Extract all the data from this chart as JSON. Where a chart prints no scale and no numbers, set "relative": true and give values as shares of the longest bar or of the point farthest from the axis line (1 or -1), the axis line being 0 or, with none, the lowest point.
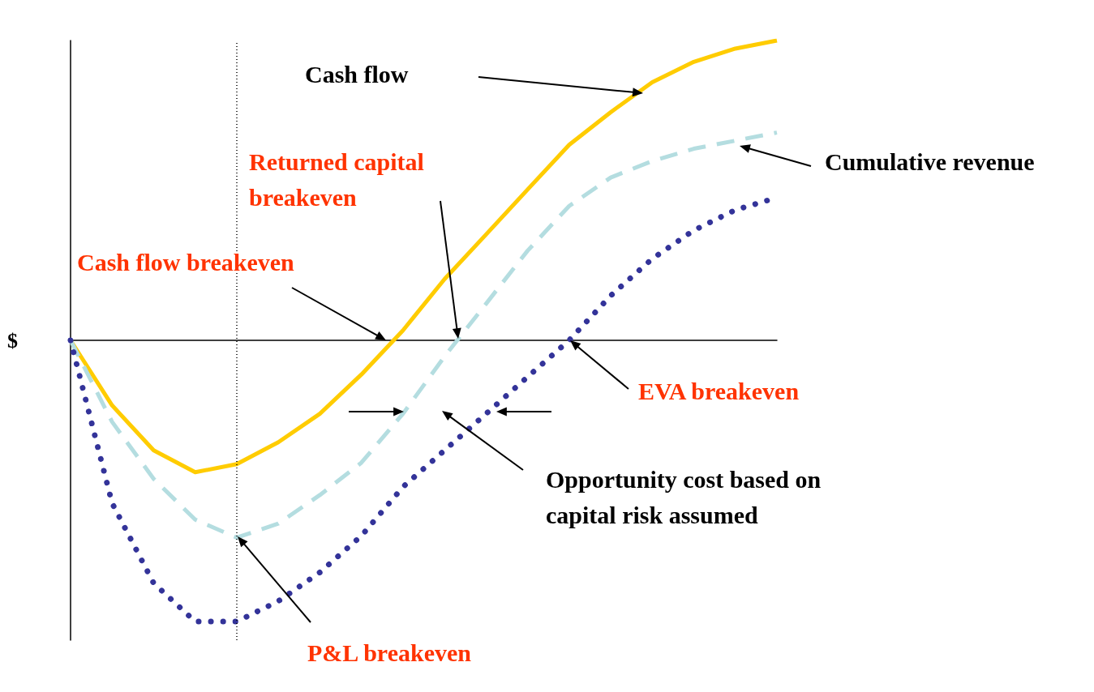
{
  "chart_data": {
    "type": "line",
    "relative": true,
    "ylabel": "$",
    "grid": false,
    "categories": [
      null,
      null,
      null,
      null,
      null,
      null,
      null,
      null,
      null,
      null,
      null,
      null,
      null,
      null,
      null,
      null,
      null,
      null
    ],
    "series": [
      {
        "color": "#ffcc00",
        "line_style": "solid",
        "values": [
          0,
          -0.217,
          -0.367,
          -0.44,
          -0.413,
          -0.34,
          -0.245,
          -0.114,
          0.033,
          0.204,
          0.353,
          0.503,
          0.652,
          0.761,
          0.861,
          0.929,
          0.973,
          1
        ]
      },
      {
        "color": "#b4dde0",
        "line_style": "dashed",
        "values": [
          0,
          -0.272,
          -0.462,
          -0.598,
          -0.658,
          -0.611,
          -0.516,
          -0.408,
          -0.245,
          -0.054,
          0.122,
          0.299,
          0.448,
          0.543,
          0.598,
          0.639,
          0.666,
          0.693
        ]
      },
      {
        "color": "#333399",
        "line_style": "dotted",
        "values": [
          0,
          -0.543,
          -0.81,
          -0.938,
          -0.938,
          -0.87,
          -0.774,
          -0.652,
          -0.489,
          -0.367,
          -0.245,
          -0.122,
          0,
          0.149,
          0.272,
          0.367,
          0.435,
          0.476
        ]
      }
    ],
    "annotations": [
      "Cash flow",
      "Cumulative revenue",
      "Returned capital breakeven",
      "Cash flow breakeven",
      "EVA breakeven",
      "Opportunity cost based on capital risk assumed",
      "P&L breakeven"
    ]
  }
}
